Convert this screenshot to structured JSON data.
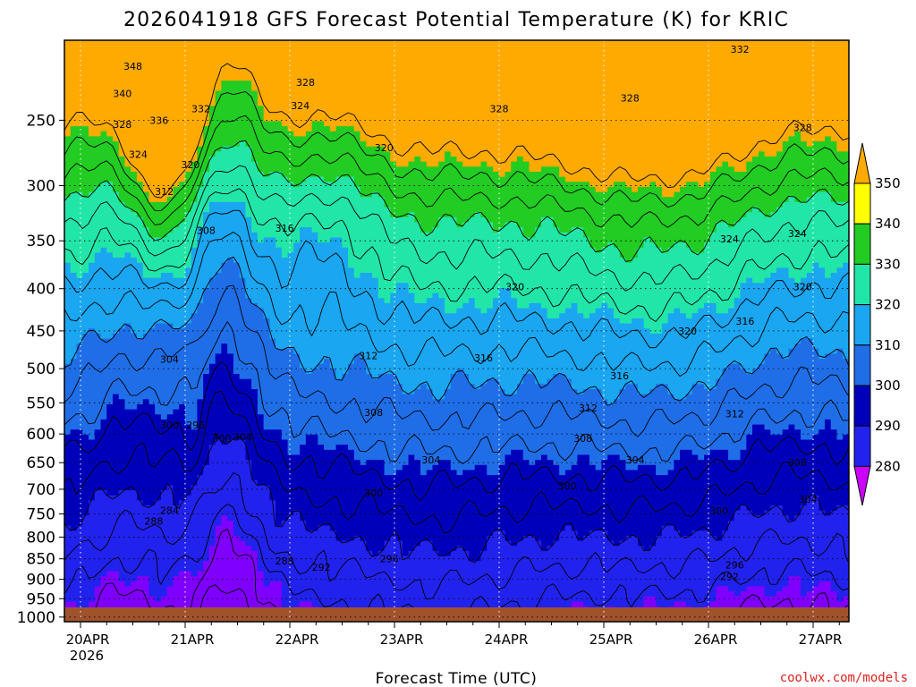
{
  "chart_data": {
    "type": "heatmap",
    "title": "2026041918 GFS Forecast Potential Temperature (K) for KRIC",
    "xlabel": "Forecast Time (UTC)",
    "ylabel": "",
    "x_ticks": [
      "20APR",
      "21APR",
      "22APR",
      "23APR",
      "24APR",
      "25APR",
      "26APR",
      "27APR"
    ],
    "x_year_label": "2026",
    "y_ticks": [
      250,
      300,
      350,
      400,
      450,
      500,
      550,
      600,
      650,
      700,
      750,
      800,
      850,
      900,
      950,
      1000
    ],
    "ylim": [
      1013,
      200
    ],
    "grid": true,
    "colorbar": {
      "levels": [
        280,
        290,
        300,
        310,
        320,
        330,
        340,
        350
      ],
      "colors": [
        "#cc00ff",
        "#7f00ff",
        "#2222ee",
        "#0000bb",
        "#1f6ee8",
        "#1aa6f0",
        "#22e6a8",
        "#22cc22",
        "#ffff00",
        "#ffaa00"
      ]
    },
    "contour_labels": [
      {
        "t": 0.5,
        "p": 215,
        "v": "348"
      },
      {
        "t": 0.4,
        "p": 232,
        "v": "340"
      },
      {
        "t": 0.4,
        "p": 253,
        "v": "328"
      },
      {
        "t": 0.75,
        "p": 250,
        "v": "336"
      },
      {
        "t": 1.15,
        "p": 242,
        "v": "332"
      },
      {
        "t": 0.55,
        "p": 275,
        "v": "324"
      },
      {
        "t": 1.05,
        "p": 283,
        "v": "320"
      },
      {
        "t": 0.8,
        "p": 305,
        "v": "312"
      },
      {
        "t": 1.2,
        "p": 340,
        "v": "308"
      },
      {
        "t": 1.95,
        "p": 338,
        "v": "316"
      },
      {
        "t": 2.9,
        "p": 270,
        "v": "320"
      },
      {
        "t": 2.15,
        "p": 225,
        "v": "328"
      },
      {
        "t": 2.1,
        "p": 240,
        "v": "324"
      },
      {
        "t": 4.0,
        "p": 242,
        "v": "328"
      },
      {
        "t": 5.25,
        "p": 235,
        "v": "328"
      },
      {
        "t": 6.3,
        "p": 205,
        "v": "332"
      },
      {
        "t": 6.9,
        "p": 255,
        "v": "328"
      },
      {
        "t": 6.85,
        "p": 343,
        "v": "324"
      },
      {
        "t": 6.2,
        "p": 348,
        "v": "324"
      },
      {
        "t": 4.15,
        "p": 398,
        "v": "320"
      },
      {
        "t": 6.9,
        "p": 398,
        "v": "320"
      },
      {
        "t": 5.8,
        "p": 450,
        "v": "320"
      },
      {
        "t": 6.35,
        "p": 438,
        "v": "316"
      },
      {
        "t": 3.85,
        "p": 485,
        "v": "316"
      },
      {
        "t": 5.15,
        "p": 510,
        "v": "316"
      },
      {
        "t": 2.75,
        "p": 482,
        "v": "312"
      },
      {
        "t": 4.85,
        "p": 558,
        "v": "312"
      },
      {
        "t": 6.25,
        "p": 567,
        "v": "312"
      },
      {
        "t": 0.85,
        "p": 487,
        "v": "304"
      },
      {
        "t": 2.8,
        "p": 565,
        "v": "308"
      },
      {
        "t": 4.8,
        "p": 607,
        "v": "308"
      },
      {
        "t": 6.85,
        "p": 650,
        "v": "308"
      },
      {
        "t": 1.55,
        "p": 605,
        "v": "304"
      },
      {
        "t": 3.35,
        "p": 645,
        "v": "304"
      },
      {
        "t": 5.3,
        "p": 645,
        "v": "304"
      },
      {
        "t": 6.95,
        "p": 720,
        "v": "304"
      },
      {
        "t": 0.85,
        "p": 585,
        "v": "300"
      },
      {
        "t": 1.1,
        "p": 585,
        "v": "296"
      },
      {
        "t": 1.35,
        "p": 607,
        "v": "300"
      },
      {
        "t": 2.8,
        "p": 707,
        "v": "300"
      },
      {
        "t": 4.65,
        "p": 693,
        "v": "300"
      },
      {
        "t": 6.1,
        "p": 743,
        "v": "300"
      },
      {
        "t": 0.85,
        "p": 742,
        "v": "284"
      },
      {
        "t": 0.7,
        "p": 765,
        "v": "288"
      },
      {
        "t": 1.95,
        "p": 855,
        "v": "288"
      },
      {
        "t": 2.3,
        "p": 870,
        "v": "292"
      },
      {
        "t": 2.95,
        "p": 850,
        "v": "296"
      },
      {
        "t": 6.25,
        "p": 865,
        "v": "296"
      },
      {
        "t": 6.2,
        "p": 893,
        "v": "292"
      }
    ]
  },
  "credit": "coolwx.com/models"
}
